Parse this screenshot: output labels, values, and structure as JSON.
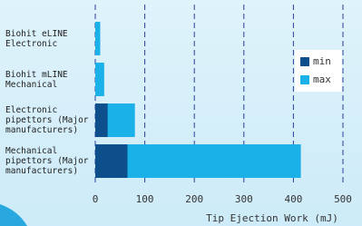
{
  "chart_data": {
    "type": "bar",
    "orientation": "horizontal",
    "x_label": "Tip Ejection Work (mJ)",
    "categories": [
      "Biohit eLINE\nElectronic",
      "Biohit mLINE\nMechanical",
      "Electronic\npipettors (Major\nmanufacturers)",
      "Mechanical\npipettors (Major\nmanufacturers)"
    ],
    "series": [
      {
        "name": "max",
        "color": "#1ab0e8",
        "values": [
          10,
          18,
          80,
          415
        ]
      },
      {
        "name": "min",
        "color": "#0d4f8b",
        "values": [
          null,
          null,
          25,
          65
        ]
      }
    ],
    "legend_order": [
      1,
      0
    ],
    "xlim": [
      0,
      500
    ],
    "xticks": [
      0,
      100,
      200,
      300,
      400,
      500
    ],
    "grid": true
  }
}
